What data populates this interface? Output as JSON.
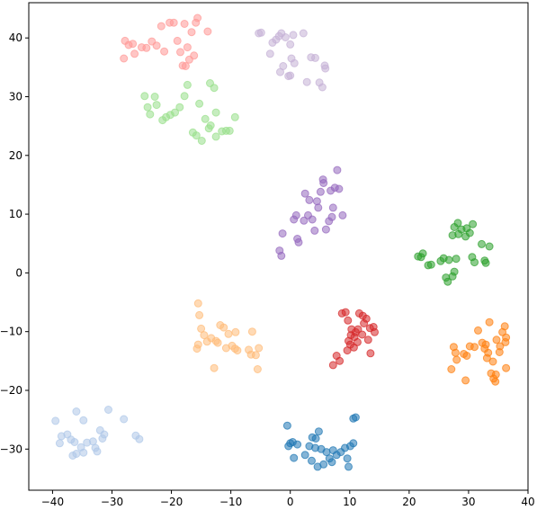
{
  "chart_data": {
    "type": "scatter",
    "title": "",
    "xlabel": "",
    "ylabel": "",
    "xlim": [
      -44,
      40
    ],
    "ylim": [
      -37,
      46
    ],
    "xticks": [
      -40,
      -30,
      -20,
      -10,
      0,
      10,
      20,
      30,
      40
    ],
    "yticks": [
      -30,
      -20,
      -10,
      0,
      10,
      20,
      30,
      40
    ],
    "grid": false,
    "legend": "none",
    "marker_alpha": 0.55,
    "series": [
      {
        "color": "#1f77b4",
        "points": [
          [
            -0.5,
            -26
          ],
          [
            0,
            -29
          ],
          [
            -0.3,
            -29.5
          ],
          [
            0.4,
            -28.8
          ],
          [
            1.2,
            -29.2
          ],
          [
            0.6,
            -31.5
          ],
          [
            2.5,
            -31
          ],
          [
            3.2,
            -29.5
          ],
          [
            3.7,
            -28
          ],
          [
            4.3,
            -28.2
          ],
          [
            4.8,
            -27
          ],
          [
            4.2,
            -29.8
          ],
          [
            3.6,
            -32
          ],
          [
            4.6,
            -33
          ],
          [
            5.6,
            -32.6
          ],
          [
            6.1,
            -30.5
          ],
          [
            7.2,
            -30.2
          ],
          [
            7.8,
            -31
          ],
          [
            8.5,
            -30.5
          ],
          [
            9.2,
            -29.8
          ],
          [
            10.1,
            -29.5
          ],
          [
            6.6,
            -31.6
          ],
          [
            7,
            -32.2
          ],
          [
            9.6,
            -31.6
          ],
          [
            9.8,
            -33
          ],
          [
            10.6,
            -29
          ],
          [
            10.6,
            -24.8
          ],
          [
            11,
            -24.6
          ],
          [
            5.2,
            -30
          ]
        ]
      },
      {
        "color": "#aec7e8",
        "points": [
          [
            -39.5,
            -25.2
          ],
          [
            -38.5,
            -27.8
          ],
          [
            -37.5,
            -27.5
          ],
          [
            -38.8,
            -29
          ],
          [
            -36.3,
            -28.8
          ],
          [
            -36.9,
            -28.4
          ],
          [
            -36,
            -30.8
          ],
          [
            -36.6,
            -31.1
          ],
          [
            -35.2,
            -29.7
          ],
          [
            -34.8,
            -30.6
          ],
          [
            -34.2,
            -28.9
          ],
          [
            -34.8,
            -25.1
          ],
          [
            -36,
            -23.6
          ],
          [
            -33.2,
            -28.7
          ],
          [
            -32.8,
            -29.8
          ],
          [
            -32.5,
            -30.4
          ],
          [
            -32,
            -26.8
          ],
          [
            -31.6,
            -28.2
          ],
          [
            -31.3,
            -27.5
          ],
          [
            -30.6,
            -23.3
          ],
          [
            -28,
            -24.9
          ],
          [
            -26,
            -27.7
          ],
          [
            -25.4,
            -28.3
          ]
        ]
      },
      {
        "color": "#ff7f0e",
        "points": [
          [
            27.1,
            -16.4
          ],
          [
            27.8,
            -13.6
          ],
          [
            28,
            -14.8
          ],
          [
            27.5,
            -12.6
          ],
          [
            29.5,
            -18.3
          ],
          [
            29.2,
            -13.8
          ],
          [
            29.7,
            -14.1
          ],
          [
            30.2,
            -12.5
          ],
          [
            31,
            -12.6
          ],
          [
            31.6,
            -9.8
          ],
          [
            32.3,
            -11.9
          ],
          [
            32.7,
            -12.9
          ],
          [
            33.3,
            -13.6
          ],
          [
            32.9,
            -12.2
          ],
          [
            33.5,
            -8.4
          ],
          [
            33.1,
            -14.5
          ],
          [
            34.1,
            -15.1
          ],
          [
            33.8,
            -17.1
          ],
          [
            34.5,
            -18.5
          ],
          [
            34.2,
            -18
          ],
          [
            34.7,
            -11.4
          ],
          [
            35.2,
            -13.5
          ],
          [
            35.7,
            -10.1
          ],
          [
            35.3,
            -12.5
          ],
          [
            36.3,
            -11
          ],
          [
            36.1,
            -9.1
          ],
          [
            36.3,
            -16.2
          ],
          [
            34.6,
            -17.3
          ],
          [
            36.2,
            -11.8
          ]
        ]
      },
      {
        "color": "#ffbb78",
        "points": [
          [
            -15.5,
            -5.2
          ],
          [
            -15.3,
            -7.2
          ],
          [
            -15,
            -9.5
          ],
          [
            -15.5,
            -12.2
          ],
          [
            -15.7,
            -12.9
          ],
          [
            -14.5,
            -10.6
          ],
          [
            -14,
            -11.7
          ],
          [
            -13.3,
            -11.1
          ],
          [
            -12.5,
            -11.6
          ],
          [
            -12.8,
            -16.2
          ],
          [
            -12.2,
            -11.9
          ],
          [
            -11.8,
            -8.9
          ],
          [
            -11.2,
            -9.3
          ],
          [
            -10.4,
            -10.4
          ],
          [
            -10.8,
            -12.8
          ],
          [
            -9.8,
            -12.4
          ],
          [
            -9.3,
            -12.9
          ],
          [
            -8.9,
            -13.2
          ],
          [
            -9.2,
            -10.1
          ],
          [
            -7,
            -13.1
          ],
          [
            -6.6,
            -13.9
          ],
          [
            -6.4,
            -10
          ],
          [
            -5.8,
            -14
          ],
          [
            -5.3,
            -12.8
          ],
          [
            -5.5,
            -16.4
          ]
        ]
      },
      {
        "color": "#2ca02c",
        "points": [
          [
            21.5,
            2.8
          ],
          [
            22,
            2.7
          ],
          [
            22.3,
            3.3
          ],
          [
            23.2,
            1.3
          ],
          [
            23.7,
            1.4
          ],
          [
            25.3,
            2
          ],
          [
            25.8,
            2.5
          ],
          [
            26.7,
            2.2
          ],
          [
            26.5,
            -1.5
          ],
          [
            26.2,
            -0.8
          ],
          [
            27.3,
            -0.6
          ],
          [
            27.6,
            0.2
          ],
          [
            27.3,
            6.4
          ],
          [
            27.6,
            7.8
          ],
          [
            28.3,
            6.6
          ],
          [
            28.2,
            8.5
          ],
          [
            27.9,
            2.4
          ],
          [
            28.8,
            7.4
          ],
          [
            29.5,
            6.2
          ],
          [
            29.7,
            7.6
          ],
          [
            30.2,
            6.8
          ],
          [
            30.7,
            8.3
          ],
          [
            30.6,
            2.7
          ],
          [
            31,
            1.8
          ],
          [
            32.2,
            4.9
          ],
          [
            32.7,
            2.1
          ],
          [
            32.9,
            1.7
          ],
          [
            33.5,
            4.5
          ]
        ]
      },
      {
        "color": "#98df8a",
        "points": [
          [
            -24.5,
            30.1
          ],
          [
            -24,
            28.2
          ],
          [
            -23.6,
            27
          ],
          [
            -22.8,
            30
          ],
          [
            -22.5,
            28.6
          ],
          [
            -21.5,
            26
          ],
          [
            -20.9,
            26.5
          ],
          [
            -20.2,
            26.9
          ],
          [
            -19.4,
            27.3
          ],
          [
            -18.6,
            28.2
          ],
          [
            -17.8,
            30.1
          ],
          [
            -17.3,
            32
          ],
          [
            -16.4,
            23.9
          ],
          [
            -15.8,
            23.4
          ],
          [
            -15.3,
            28.8
          ],
          [
            -14.9,
            22.5
          ],
          [
            -14.3,
            26.2
          ],
          [
            -13.7,
            24.6
          ],
          [
            -13.4,
            25.1
          ],
          [
            -13.5,
            32.3
          ],
          [
            -12.8,
            31.5
          ],
          [
            -12.5,
            27.3
          ],
          [
            -12.5,
            23.2
          ],
          [
            -11.5,
            24.1
          ],
          [
            -10.8,
            24.2
          ],
          [
            -10.2,
            24.2
          ],
          [
            -9.3,
            26.5
          ]
        ]
      },
      {
        "color": "#d62728",
        "points": [
          [
            7.2,
            -15.7
          ],
          [
            7.8,
            -14.1
          ],
          [
            8.3,
            -15
          ],
          [
            8.7,
            -6.9
          ],
          [
            9.3,
            -6.7
          ],
          [
            9.8,
            -11.6
          ],
          [
            9.6,
            -13.2
          ],
          [
            10.2,
            -10.6
          ],
          [
            10.3,
            -9.6
          ],
          [
            10.7,
            -12.7
          ],
          [
            10.1,
            -12.2
          ],
          [
            11,
            -10.1
          ],
          [
            11.4,
            -9.6
          ],
          [
            11.3,
            -11.8
          ],
          [
            11.6,
            -6.9
          ],
          [
            12.2,
            -7.3
          ],
          [
            12.1,
            -10.5
          ],
          [
            12.4,
            -8.6
          ],
          [
            12.8,
            -7.8
          ],
          [
            13.1,
            -11.4
          ],
          [
            13.4,
            -9.4
          ],
          [
            13.5,
            -13.7
          ],
          [
            14.2,
            -10.1
          ],
          [
            14,
            -9.2
          ],
          [
            9.7,
            -8.1
          ],
          [
            10.8,
            -10.9
          ]
        ]
      },
      {
        "color": "#ff9896",
        "points": [
          [
            -28,
            36.5
          ],
          [
            -27.8,
            39.5
          ],
          [
            -27.2,
            38.8
          ],
          [
            -26.5,
            39
          ],
          [
            -26.2,
            37.3
          ],
          [
            -25,
            38.4
          ],
          [
            -24.2,
            38.3
          ],
          [
            -23.3,
            39.4
          ],
          [
            -22.5,
            38.7
          ],
          [
            -21.7,
            42
          ],
          [
            -21.2,
            37.7
          ],
          [
            -20.3,
            42.6
          ],
          [
            -19.6,
            42.6
          ],
          [
            -19,
            39.5
          ],
          [
            -18.1,
            35.3
          ],
          [
            -18.5,
            37.6
          ],
          [
            -17.6,
            35.2
          ],
          [
            -17.3,
            38.4
          ],
          [
            -17,
            36.3
          ],
          [
            -16.6,
            41
          ],
          [
            -16.2,
            37
          ],
          [
            -15.6,
            43.4
          ],
          [
            -15.9,
            42.6
          ],
          [
            -13.9,
            41.1
          ],
          [
            -17.8,
            42.4
          ]
        ]
      },
      {
        "color": "#9467bd",
        "points": [
          [
            -1.8,
            3.8
          ],
          [
            -1.5,
            2.9
          ],
          [
            -1.3,
            6.7
          ],
          [
            0.6,
            9.1
          ],
          [
            1,
            9.8
          ],
          [
            1.2,
            5.8
          ],
          [
            1.4,
            5.2
          ],
          [
            2.3,
            8.9
          ],
          [
            2.5,
            13.5
          ],
          [
            3,
            9.8
          ],
          [
            3.2,
            12.4
          ],
          [
            3.7,
            9.1
          ],
          [
            4.1,
            7.2
          ],
          [
            4.7,
            11.1
          ],
          [
            4.5,
            12.2
          ],
          [
            5.1,
            13.8
          ],
          [
            5.5,
            15.9
          ],
          [
            5.6,
            15.3
          ],
          [
            6,
            7.4
          ],
          [
            6.5,
            8.8
          ],
          [
            6.8,
            14
          ],
          [
            7.2,
            11.1
          ],
          [
            7.5,
            14.5
          ],
          [
            7.9,
            17.5
          ],
          [
            8.2,
            14.3
          ],
          [
            8.8,
            9.8
          ],
          [
            7,
            9.5
          ]
        ]
      },
      {
        "color": "#c5b0d5",
        "points": [
          [
            -5.3,
            40.8
          ],
          [
            -4.9,
            40.9
          ],
          [
            -3.4,
            37.3
          ],
          [
            -3,
            39.2
          ],
          [
            -2.4,
            39.7
          ],
          [
            -1.9,
            40.3
          ],
          [
            -1.7,
            34.2
          ],
          [
            -1.5,
            40.8
          ],
          [
            -1.2,
            35.2
          ],
          [
            -0.8,
            40.1
          ],
          [
            -0.3,
            33.5
          ],
          [
            0,
            33.6
          ],
          [
            0,
            38.9
          ],
          [
            0.2,
            36.5
          ],
          [
            0.5,
            40.5
          ],
          [
            0.7,
            35.7
          ],
          [
            2.2,
            40.8
          ],
          [
            2.8,
            32.5
          ],
          [
            3.5,
            36.7
          ],
          [
            4.2,
            36.6
          ],
          [
            4.9,
            32.4
          ],
          [
            5.4,
            31.6
          ],
          [
            5.8,
            35.3
          ],
          [
            5.9,
            34.8
          ]
        ]
      }
    ]
  }
}
